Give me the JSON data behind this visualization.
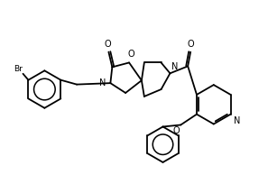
{
  "background_color": "#ffffff",
  "line_color": "#000000",
  "lw": 1.3,
  "figsize": [
    2.97,
    2.04
  ],
  "dpi": 100,
  "br_label": "Br",
  "o_label": "O",
  "n_label": "N"
}
